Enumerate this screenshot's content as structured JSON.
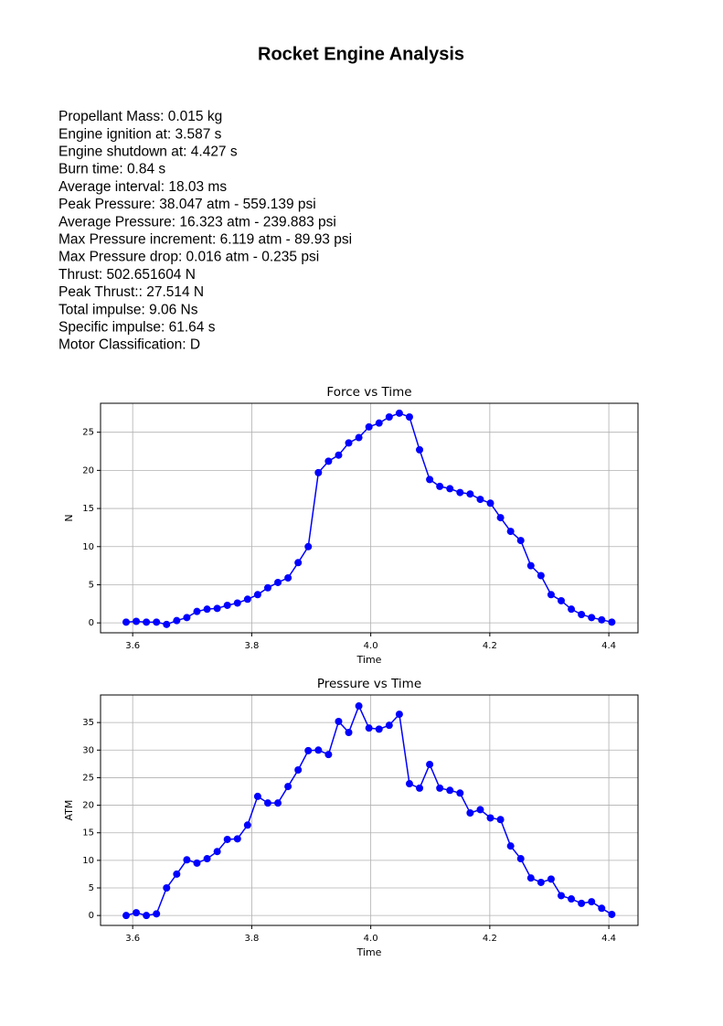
{
  "title": "Rocket Engine Analysis",
  "stats": [
    "Propellant Mass: 0.015 kg",
    "Engine ignition at: 3.587 s",
    "Engine shutdown at: 4.427 s",
    "Burn time: 0.84 s",
    "Average interval: 18.03 ms",
    "Peak Pressure: 38.047 atm - 559.139 psi",
    "Average Pressure: 16.323 atm - 239.883 psi",
    "Max Pressure increment: 6.119 atm - 89.93 psi",
    "Max Pressure drop: 0.016 atm - 0.235 psi",
    "Thrust: 502.651604 N",
    "Peak Thrust:: 27.514 N",
    "Total impulse: 9.06 Ns",
    "Specific impulse: 61.64 s",
    "Motor Classification: D"
  ],
  "chart_data": [
    {
      "type": "line",
      "title": "Force vs Time",
      "x_label": "Time",
      "y_label": "N",
      "grid": true,
      "x": [
        3.589,
        3.606,
        3.623,
        3.64,
        3.657,
        3.674,
        3.691,
        3.708,
        3.725,
        3.742,
        3.759,
        3.776,
        3.793,
        3.81,
        3.827,
        3.844,
        3.861,
        3.878,
        3.895,
        3.912,
        3.929,
        3.946,
        3.963,
        3.98,
        3.997,
        4.014,
        4.031,
        4.048,
        4.065,
        4.082,
        4.099,
        4.116,
        4.133,
        4.15,
        4.167,
        4.184,
        4.201,
        4.218,
        4.235,
        4.252,
        4.269,
        4.286,
        4.303,
        4.32,
        4.337,
        4.354,
        4.371,
        4.388,
        4.405
      ],
      "series": [
        {
          "color": "#0000ff",
          "values": [
            0.1,
            0.2,
            0.1,
            0.1,
            -0.2,
            0.3,
            0.7,
            1.5,
            1.8,
            1.9,
            2.3,
            2.6,
            3.1,
            3.7,
            4.6,
            5.3,
            5.9,
            7.9,
            10.0,
            19.7,
            21.2,
            22.0,
            23.6,
            24.3,
            25.7,
            26.2,
            27.0,
            27.5,
            27.0,
            22.7,
            18.8,
            17.9,
            17.6,
            17.1,
            16.9,
            16.2,
            15.7,
            13.8,
            12.0,
            10.8,
            7.5,
            6.2,
            3.7,
            2.9,
            1.8,
            1.1,
            0.7,
            0.4,
            0.1
          ]
        }
      ],
      "xlim": [
        3.546,
        4.449
      ],
      "xticks": [
        3.6,
        3.8,
        {
          "value": 4,
          "label": "4.0"
        },
        4.2,
        4.4
      ],
      "ylim": [
        -1.3,
        28.8
      ],
      "yticks": [
        0,
        5,
        10,
        15,
        20,
        25
      ]
    },
    {
      "type": "line",
      "title": "Pressure vs Time",
      "x_label": "Time",
      "y_label": "ATM",
      "grid": true,
      "x": [
        3.589,
        3.606,
        3.623,
        3.64,
        3.657,
        3.674,
        3.691,
        3.708,
        3.725,
        3.742,
        3.759,
        3.776,
        3.793,
        3.81,
        3.827,
        3.844,
        3.861,
        3.878,
        3.895,
        3.912,
        3.929,
        3.946,
        3.963,
        3.98,
        3.997,
        4.014,
        4.031,
        4.048,
        4.065,
        4.082,
        4.099,
        4.116,
        4.133,
        4.15,
        4.167,
        4.184,
        4.201,
        4.218,
        4.235,
        4.252,
        4.269,
        4.286,
        4.303,
        4.32,
        4.337,
        4.354,
        4.371,
        4.388,
        4.405
      ],
      "series": [
        {
          "color": "#0000ff",
          "values": [
            0,
            0.5,
            0,
            0.3,
            5.0,
            7.5,
            10.1,
            9.5,
            10.3,
            11.6,
            13.8,
            13.9,
            16.4,
            21.6,
            20.4,
            20.4,
            23.4,
            26.4,
            29.9,
            30.0,
            29.2,
            35.2,
            33.2,
            38.0,
            34.0,
            33.8,
            34.5,
            36.5,
            23.9,
            23.1,
            27.4,
            23.1,
            22.7,
            22.2,
            18.6,
            19.2,
            17.7,
            17.4,
            12.6,
            10.3,
            6.8,
            6.0,
            6.6,
            3.6,
            3.0,
            2.2,
            2.5,
            1.3,
            0.2
          ]
        }
      ],
      "xlim": [
        3.546,
        4.449
      ],
      "xticks": [
        3.6,
        3.8,
        {
          "value": 4,
          "label": "4.0"
        },
        4.2,
        4.4
      ],
      "ylim": [
        -1.8,
        40.0
      ],
      "yticks": [
        0,
        5,
        10,
        15,
        20,
        25,
        30,
        35
      ]
    }
  ]
}
